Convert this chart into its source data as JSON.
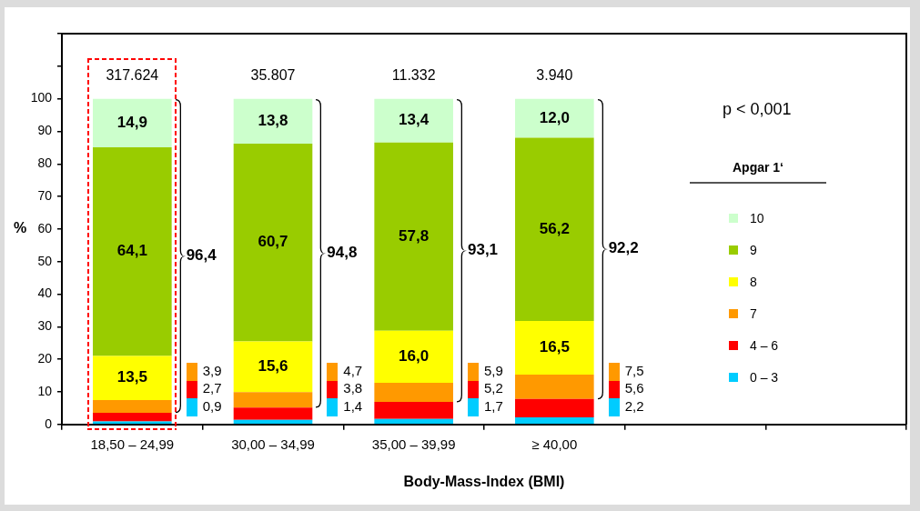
{
  "chart_data": {
    "type": "bar",
    "stacked": true,
    "xlabel": "Body-Mass-Index (BMI)",
    "ylabel": "%",
    "legend_title": "Apgar 1‘",
    "legend": "right",
    "categories": [
      "18,50 – 24,99",
      "30,00 – 34,99",
      "35,00 – 39,99",
      "≥ 40,00",
      null,
      null
    ],
    "series": [
      {
        "name": "0 – 3",
        "color": "#00ccff",
        "values": [
          0.9,
          1.4,
          1.7,
          2.2,
          null,
          null
        ]
      },
      {
        "name": "4 – 6",
        "color": "#ff0000",
        "values": [
          2.7,
          3.8,
          5.2,
          5.6,
          null,
          null
        ]
      },
      {
        "name": "7",
        "color": "#ff9900",
        "values": [
          3.9,
          4.7,
          5.9,
          7.5,
          null,
          null
        ]
      },
      {
        "name": "8",
        "color": "#ffff00",
        "values": [
          13.5,
          15.6,
          16.0,
          16.5,
          null,
          null
        ],
        "value_labels": [
          "13,5",
          "15,6",
          "16,0",
          "16,5",
          null,
          null
        ]
      },
      {
        "name": "9",
        "color": "#99cc00",
        "values": [
          64.1,
          60.7,
          57.8,
          56.2,
          null,
          null
        ],
        "value_labels": [
          "64,1",
          "60,7",
          "57,8",
          "56,2",
          null,
          null
        ]
      },
      {
        "name": "10",
        "color": "#ccffcc",
        "values": [
          14.9,
          13.8,
          13.4,
          12.0,
          null,
          null
        ],
        "value_labels": [
          "14,9",
          "13,8",
          "13,4",
          "12,0",
          null,
          null
        ]
      }
    ],
    "ylim": [
      0,
      120
    ],
    "yticks": [
      0,
      10,
      20,
      30,
      40,
      50,
      60,
      70,
      80,
      90,
      100,
      {
        "value": 110,
        "label": null
      },
      {
        "value": 120,
        "label": null
      }
    ],
    "annotations": [
      "317.624",
      "35.807",
      "11.332",
      "3.940",
      "96,4",
      "94,8",
      "93,1",
      "92,2",
      "3,9",
      "2,7",
      "0,9",
      "4,7",
      "3,8",
      "1,4",
      "5,9",
      "5,2",
      "1,7",
      "7,5",
      "5,6",
      "2,2",
      "p < 0,001"
    ]
  }
}
